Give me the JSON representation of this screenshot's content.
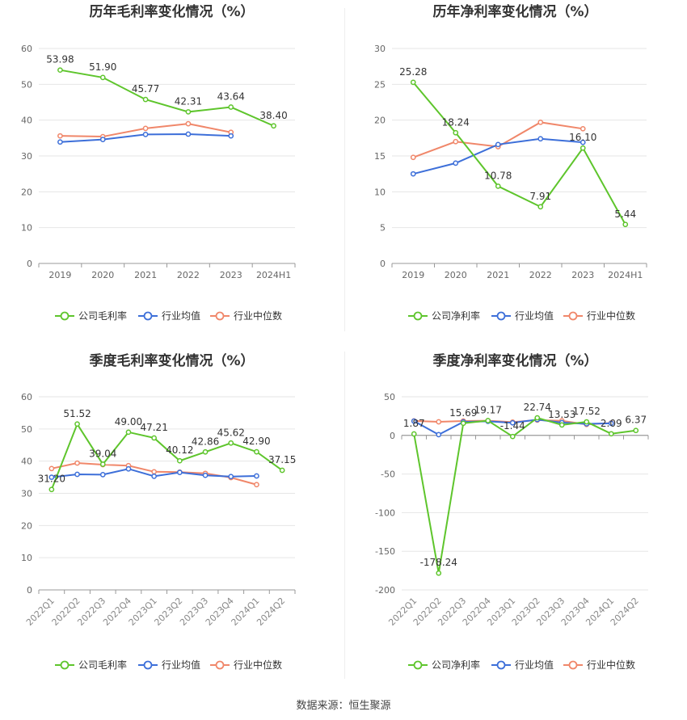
{
  "source": "数据来源：恒生聚源",
  "legend_labels": {
    "gross": [
      "公司毛利率",
      "行业均值",
      "行业中位数"
    ],
    "net": [
      "公司净利率",
      "行业均值",
      "行业中位数"
    ]
  },
  "colors": {
    "company": "#5ec52c",
    "mean": "#3d6fd9",
    "median": "#f0876a"
  },
  "chart_data": [
    {
      "type": "line",
      "title": "历年毛利率变化情况（%）",
      "categories": [
        "2019",
        "2020",
        "2021",
        "2022",
        "2023",
        "2024H1"
      ],
      "ylim": [
        0,
        60
      ],
      "yticks": [
        0,
        10,
        20,
        30,
        40,
        50,
        60
      ],
      "series": [
        {
          "name": "公司毛利率",
          "values": [
            53.98,
            51.9,
            45.77,
            42.31,
            43.64,
            38.4
          ],
          "labels": [
            "53.98",
            "51.90",
            "45.77",
            "42.31",
            "43.64",
            "38.40"
          ]
        },
        {
          "name": "行业均值",
          "values": [
            33.9,
            34.6,
            36.0,
            36.1,
            35.6,
            null
          ]
        },
        {
          "name": "行业中位数",
          "values": [
            35.6,
            35.4,
            37.7,
            39.0,
            36.6,
            null
          ]
        }
      ]
    },
    {
      "type": "line",
      "title": "历年净利率变化情况（%）",
      "categories": [
        "2019",
        "2020",
        "2021",
        "2022",
        "2023",
        "2024H1"
      ],
      "ylim": [
        0,
        30
      ],
      "yticks": [
        0,
        5,
        10,
        15,
        20,
        25,
        30
      ],
      "series": [
        {
          "name": "公司净利率",
          "values": [
            25.28,
            18.24,
            10.78,
            7.91,
            16.1,
            5.44
          ],
          "labels": [
            "25.28",
            "18.24",
            "10.78",
            "7.91",
            "16.10",
            "5.44"
          ]
        },
        {
          "name": "行业均值",
          "values": [
            12.5,
            14.0,
            16.6,
            17.4,
            16.9,
            null
          ]
        },
        {
          "name": "行业中位数",
          "values": [
            14.8,
            17.0,
            16.3,
            19.7,
            18.8,
            null
          ]
        }
      ]
    },
    {
      "type": "line",
      "title": "季度毛利率变化情况（%）",
      "categories": [
        "2022Q1",
        "2022Q2",
        "2022Q3",
        "2022Q4",
        "2023Q1",
        "2023Q2",
        "2023Q3",
        "2023Q4",
        "2024Q1",
        "2024Q2"
      ],
      "ylim": [
        0,
        60
      ],
      "yticks": [
        0,
        10,
        20,
        30,
        40,
        50,
        60
      ],
      "series": [
        {
          "name": "公司毛利率",
          "values": [
            31.2,
            51.52,
            39.04,
            49.0,
            47.21,
            40.12,
            42.86,
            45.62,
            42.9,
            37.15
          ],
          "labels": [
            "31.20",
            "51.52",
            "39.04",
            "49.00",
            "47.21",
            "40.12",
            "42.86",
            "45.62",
            "42.90",
            "37.15"
          ]
        },
        {
          "name": "行业均值",
          "values": [
            35.0,
            35.9,
            35.8,
            37.6,
            35.3,
            36.5,
            35.6,
            35.2,
            35.4,
            null
          ]
        },
        {
          "name": "行业中位数",
          "values": [
            37.7,
            39.4,
            38.9,
            38.6,
            36.7,
            36.6,
            36.2,
            34.9,
            32.7,
            null
          ]
        }
      ]
    },
    {
      "type": "line",
      "title": "季度净利率变化情况（%）",
      "categories": [
        "2022Q1",
        "2022Q2",
        "2022Q3",
        "2022Q4",
        "2023Q1",
        "2023Q2",
        "2023Q3",
        "2023Q4",
        "2024Q1",
        "2024Q2"
      ],
      "ylim": [
        -200,
        50
      ],
      "yticks": [
        -200,
        -150,
        -100,
        -50,
        0,
        50
      ],
      "series": [
        {
          "name": "公司净利率",
          "values": [
            1.87,
            -178.24,
            15.69,
            19.17,
            -1.44,
            22.74,
            13.53,
            17.52,
            2.09,
            6.37
          ],
          "labels": [
            "1.87",
            "-178.24",
            "15.69",
            "19.17",
            "-1.44",
            "22.74",
            "13.53",
            "17.52",
            "2.09",
            "6.37"
          ]
        },
        {
          "name": "行业均值",
          "values": [
            18.5,
            1.0,
            17.5,
            18.2,
            16.3,
            20.5,
            16.5,
            15.0,
            15.6,
            null
          ]
        },
        {
          "name": "行业中位数",
          "values": [
            18.8,
            17.6,
            18.6,
            19.0,
            17.2,
            19.8,
            18.9,
            14.2,
            16.2,
            null
          ]
        }
      ]
    }
  ]
}
